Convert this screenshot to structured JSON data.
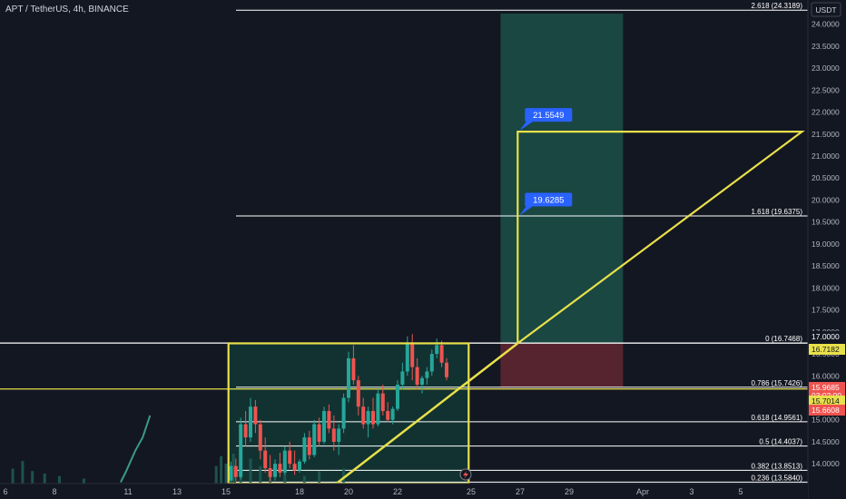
{
  "header": {
    "title": "APT / TetherUS, 4h, BINANCE"
  },
  "currency_label": "USDT",
  "colors": {
    "background": "#131722",
    "up": "#26a69a",
    "down": "#ef5350",
    "fib_line": "#ffffff",
    "pattern": "#e8e04a",
    "label_blue": "#2962ff",
    "target_zone": "#1a4a44",
    "stop_zone": "#5a2530"
  },
  "chart_data": {
    "type": "candlestick",
    "symbol": "APT / TetherUS",
    "interval": "4h",
    "exchange": "BINANCE",
    "x_ticks": [
      {
        "label": "6",
        "day": 6
      },
      {
        "label": "8",
        "day": 8
      },
      {
        "label": "11",
        "day": 11
      },
      {
        "label": "13",
        "day": 13
      },
      {
        "label": "15",
        "day": 15
      },
      {
        "label": "18",
        "day": 18
      },
      {
        "label": "20",
        "day": 20
      },
      {
        "label": "22",
        "day": 22
      },
      {
        "label": "25",
        "day": 25
      },
      {
        "label": "27",
        "day": 27
      },
      {
        "label": "29",
        "day": 29
      },
      {
        "label": "Apr",
        "day": 32
      },
      {
        "label": "3",
        "day": 34
      },
      {
        "label": "5",
        "day": 36
      }
    ],
    "y_range": [
      13.55,
      24.55
    ],
    "y_ticks": [
      "14.0000",
      "14.5000",
      "15.0000",
      "15.5000",
      "16.0000",
      "16.5000",
      "17.0000",
      "17.5000",
      "18.0000",
      "18.5000",
      "19.0000",
      "19.5000",
      "20.0000",
      "20.5000",
      "21.0000",
      "21.5000",
      "22.0000",
      "22.5000",
      "23.0000",
      "23.5000",
      "24.0000"
    ],
    "fib_levels": [
      {
        "label": "2.618 (24.3189)",
        "value": 24.3189
      },
      {
        "label": "1.618 (19.6375)",
        "value": 19.6375
      },
      {
        "label": "0 (16.7468)",
        "value": 16.7468
      },
      {
        "label": "0.786 (15.7426)",
        "value": 15.7426
      },
      {
        "label": "0.618 (14.9561)",
        "value": 14.9561
      },
      {
        "label": "0.5 (14.4037)",
        "value": 14.4037
      },
      {
        "label": "0.382 (13.8513)",
        "value": 13.8513
      },
      {
        "label": "0.236 (13.5840)",
        "value": 13.584
      }
    ],
    "targets": [
      {
        "label": "21.5549",
        "value": 21.5549
      },
      {
        "label": "19.6285",
        "value": 19.6285
      }
    ],
    "price_labels": [
      {
        "label": "17.0000",
        "value": 17.0,
        "style": "dark"
      },
      {
        "label": "16.7182",
        "value": 16.7182,
        "style": "yellow"
      },
      {
        "label": "15.9685",
        "sublabel": "03:02:00",
        "value": 15.9685,
        "style": "red"
      },
      {
        "label": "15.7014",
        "value": 15.7014,
        "style": "yellow"
      },
      {
        "label": "15.6608",
        "value": 15.6608,
        "style": "red"
      }
    ],
    "horizontal_lines": [
      16.7468,
      15.7014
    ],
    "risk_reward": {
      "x_start_day": 26.2,
      "x_end_day": 31.2,
      "entry": 16.74,
      "target": 24.55,
      "stop": 15.74
    },
    "pattern": {
      "rect": {
        "x_start_day": 15.1,
        "x_end_day": 24.9,
        "top": 16.74,
        "bottom": 13.55
      },
      "support_line": [
        {
          "day": 19.5,
          "value": 13.55
        },
        {
          "day": 26.9,
          "value": 16.74
        }
      ],
      "projection": [
        {
          "day": 26.9,
          "value": 16.74
        },
        {
          "day": 26.9,
          "value": 21.5549
        },
        {
          "day": 38.5,
          "value": 21.5549
        }
      ]
    },
    "candles": [
      {
        "day": 15.2,
        "o": 13.62,
        "h": 14.05,
        "c": 13.95,
        "l": 13.58
      },
      {
        "day": 15.4,
        "o": 13.95,
        "h": 14.12,
        "c": 13.7,
        "l": 13.6
      },
      {
        "day": 15.6,
        "o": 13.7,
        "h": 15.05,
        "c": 14.9,
        "l": 13.65
      },
      {
        "day": 15.8,
        "o": 14.9,
        "h": 15.2,
        "c": 14.6,
        "l": 14.4
      },
      {
        "day": 16.0,
        "o": 14.6,
        "h": 15.5,
        "c": 15.3,
        "l": 14.5
      },
      {
        "day": 16.2,
        "o": 15.3,
        "h": 15.45,
        "c": 14.9,
        "l": 14.7
      },
      {
        "day": 16.4,
        "o": 14.9,
        "h": 15.0,
        "c": 14.3,
        "l": 14.1
      },
      {
        "day": 16.6,
        "o": 14.3,
        "h": 14.6,
        "c": 13.9,
        "l": 13.8
      },
      {
        "day": 16.8,
        "o": 13.9,
        "h": 14.2,
        "c": 13.7,
        "l": 13.6
      },
      {
        "day": 17.0,
        "o": 13.7,
        "h": 14.1,
        "c": 14.0,
        "l": 13.62
      },
      {
        "day": 17.2,
        "o": 14.0,
        "h": 14.25,
        "c": 13.8,
        "l": 13.7
      },
      {
        "day": 17.4,
        "o": 13.8,
        "h": 14.4,
        "c": 14.3,
        "l": 13.75
      },
      {
        "day": 17.6,
        "o": 14.3,
        "h": 14.5,
        "c": 14.0,
        "l": 13.9
      },
      {
        "day": 17.8,
        "o": 14.0,
        "h": 14.3,
        "c": 13.85,
        "l": 13.75
      },
      {
        "day": 18.0,
        "o": 13.85,
        "h": 14.1,
        "c": 14.05,
        "l": 13.8
      },
      {
        "day": 18.2,
        "o": 14.05,
        "h": 14.7,
        "c": 14.6,
        "l": 14.0
      },
      {
        "day": 18.4,
        "o": 14.6,
        "h": 14.75,
        "c": 14.2,
        "l": 14.1
      },
      {
        "day": 18.6,
        "o": 14.2,
        "h": 15.0,
        "c": 14.9,
        "l": 14.15
      },
      {
        "day": 18.8,
        "o": 14.9,
        "h": 15.05,
        "c": 14.5,
        "l": 14.4
      },
      {
        "day": 19.0,
        "o": 14.5,
        "h": 15.3,
        "c": 15.2,
        "l": 14.45
      },
      {
        "day": 19.2,
        "o": 15.2,
        "h": 15.35,
        "c": 14.8,
        "l": 14.7
      },
      {
        "day": 19.4,
        "o": 14.8,
        "h": 15.1,
        "c": 14.5,
        "l": 14.3
      },
      {
        "day": 19.6,
        "o": 14.5,
        "h": 14.9,
        "c": 14.8,
        "l": 14.2
      },
      {
        "day": 19.8,
        "o": 14.8,
        "h": 15.6,
        "c": 15.5,
        "l": 14.7
      },
      {
        "day": 20.0,
        "o": 15.5,
        "h": 16.55,
        "c": 16.4,
        "l": 15.4
      },
      {
        "day": 20.2,
        "o": 16.4,
        "h": 16.7,
        "c": 15.9,
        "l": 15.8
      },
      {
        "day": 20.4,
        "o": 15.9,
        "h": 16.0,
        "c": 15.3,
        "l": 15.1
      },
      {
        "day": 20.6,
        "o": 15.3,
        "h": 15.5,
        "c": 14.9,
        "l": 14.8
      },
      {
        "day": 20.8,
        "o": 14.9,
        "h": 15.3,
        "c": 15.2,
        "l": 14.6
      },
      {
        "day": 21.0,
        "o": 15.2,
        "h": 15.5,
        "c": 14.9,
        "l": 14.8
      },
      {
        "day": 21.2,
        "o": 14.9,
        "h": 15.7,
        "c": 15.6,
        "l": 14.85
      },
      {
        "day": 21.4,
        "o": 15.6,
        "h": 15.8,
        "c": 15.2,
        "l": 15.1
      },
      {
        "day": 21.6,
        "o": 15.2,
        "h": 15.4,
        "c": 15.0,
        "l": 14.95
      },
      {
        "day": 21.8,
        "o": 15.0,
        "h": 15.3,
        "c": 15.25,
        "l": 14.9
      },
      {
        "day": 22.0,
        "o": 15.25,
        "h": 15.9,
        "c": 15.8,
        "l": 15.2
      },
      {
        "day": 22.2,
        "o": 15.8,
        "h": 16.3,
        "c": 16.1,
        "l": 15.7
      },
      {
        "day": 22.4,
        "o": 16.1,
        "h": 16.9,
        "c": 16.75,
        "l": 16.0
      },
      {
        "day": 22.6,
        "o": 16.75,
        "h": 16.95,
        "c": 16.2,
        "l": 15.9
      },
      {
        "day": 22.8,
        "o": 16.2,
        "h": 16.4,
        "c": 15.8,
        "l": 15.7
      },
      {
        "day": 23.0,
        "o": 15.8,
        "h": 16.0,
        "c": 15.95,
        "l": 15.6
      },
      {
        "day": 23.2,
        "o": 15.95,
        "h": 16.2,
        "c": 16.1,
        "l": 15.8
      },
      {
        "day": 23.4,
        "o": 16.1,
        "h": 16.6,
        "c": 16.5,
        "l": 16.0
      },
      {
        "day": 23.6,
        "o": 16.5,
        "h": 16.85,
        "c": 16.7,
        "l": 16.4
      },
      {
        "day": 23.8,
        "o": 16.7,
        "h": 16.8,
        "c": 16.3,
        "l": 16.2
      },
      {
        "day": 24.0,
        "o": 16.3,
        "h": 16.4,
        "c": 15.97,
        "l": 15.9
      }
    ],
    "volume": [
      {
        "day": 6.3,
        "v": 0.3
      },
      {
        "day": 6.7,
        "v": 0.45
      },
      {
        "day": 7.1,
        "v": 0.25
      },
      {
        "day": 7.6,
        "v": 0.2
      },
      {
        "day": 8.2,
        "v": 0.15
      },
      {
        "day": 9.2,
        "v": 0.1
      },
      {
        "day": 14.6,
        "v": 0.35
      },
      {
        "day": 14.8,
        "v": 0.55
      },
      {
        "day": 15.0,
        "v": 0.4
      },
      {
        "day": 15.3,
        "v": 0.6
      },
      {
        "day": 15.6,
        "v": 0.45
      },
      {
        "day": 16.0,
        "v": 0.5
      },
      {
        "day": 16.4,
        "v": 0.35
      },
      {
        "day": 16.8,
        "v": 0.3
      },
      {
        "day": 17.4,
        "v": 0.2
      },
      {
        "day": 18.2,
        "v": 0.15
      },
      {
        "day": 18.8,
        "v": 0.25
      },
      {
        "day": 19.8,
        "v": 0.3
      }
    ],
    "indicator_line": [
      {
        "day": 10.7,
        "value": 13.58
      },
      {
        "day": 10.9,
        "value": 13.8
      },
      {
        "day": 11.3,
        "value": 14.3
      },
      {
        "day": 11.6,
        "value": 14.6
      },
      {
        "day": 11.9,
        "value": 15.1
      }
    ]
  }
}
